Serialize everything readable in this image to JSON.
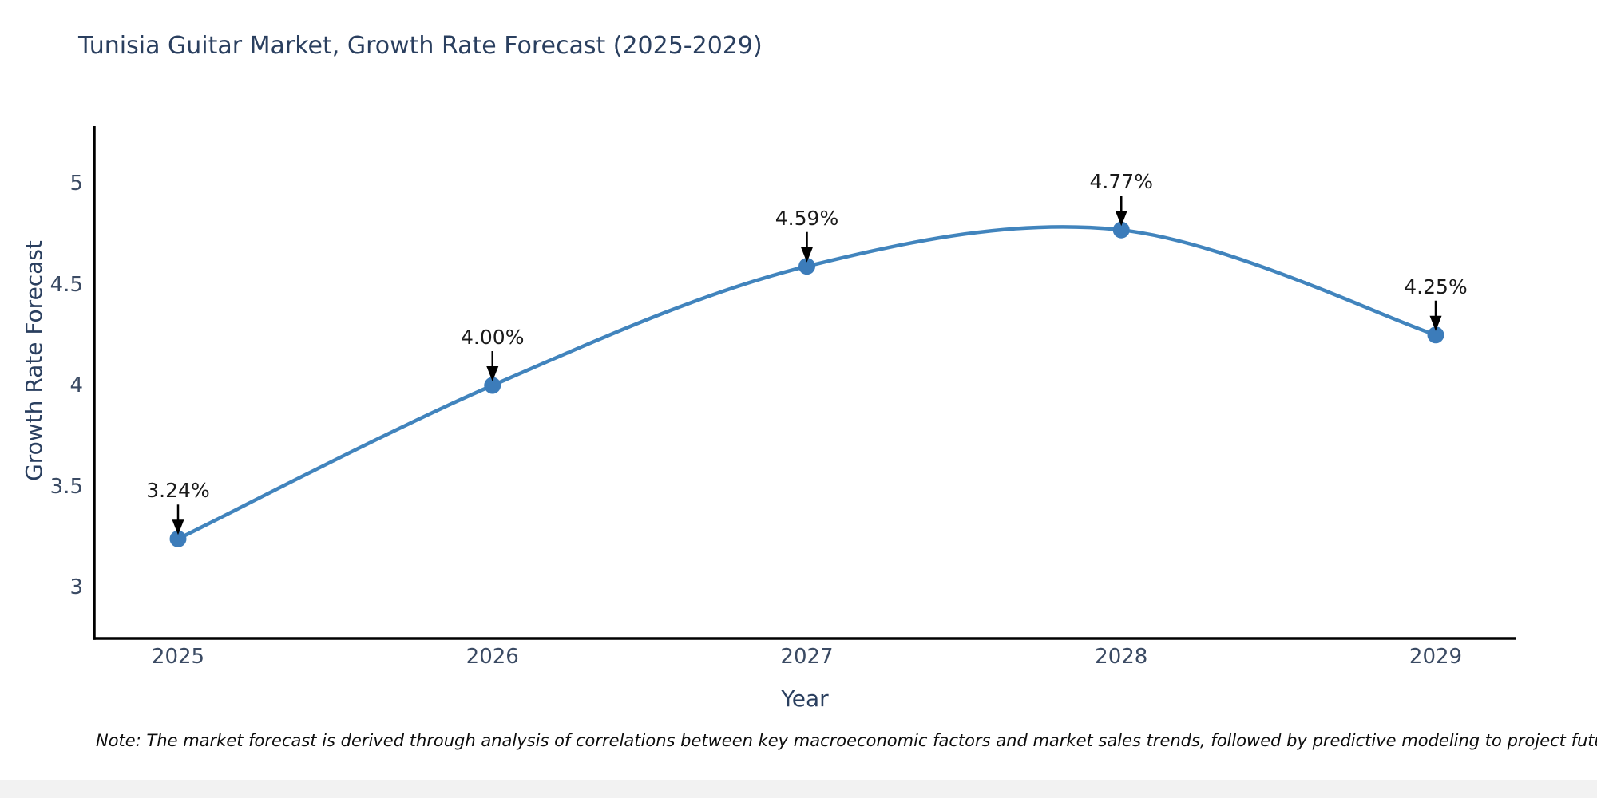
{
  "note": "Note: The market forecast is derived through analysis of correlations between key macroeconomic factors and market sales trends, followed by predictive modeling to project future sales",
  "chart_data": {
    "type": "line",
    "title": "Tunisia Guitar Market, Growth Rate Forecast (2025-2029)",
    "xlabel": "Year",
    "ylabel": "Growth Rate Forecast",
    "x": [
      2025,
      2026,
      2027,
      2028,
      2029
    ],
    "values": [
      3.24,
      4.0,
      4.59,
      4.77,
      4.25
    ],
    "point_labels": [
      "3.24%",
      "4.00%",
      "4.59%",
      "4.77%",
      "4.25%"
    ],
    "x_tick_labels": [
      "2025",
      "2026",
      "2027",
      "2028",
      "2029"
    ],
    "y_ticks": [
      3,
      3.5,
      4,
      4.5,
      5
    ],
    "y_tick_labels": [
      "3",
      "3.5",
      "4",
      "4.5",
      "5"
    ],
    "ylim": [
      2.75,
      5.28
    ],
    "grid": false,
    "legend_position": "none",
    "marker_style": "circle",
    "annotation_style": "label-with-down-arrow",
    "line_color": "#4184bd",
    "marker_color": "#3c7cba",
    "arrow_color": "#000000",
    "axis_line_color": "#000000",
    "title_color": "#2a3f5f",
    "tick_color": "#3a4a63"
  }
}
